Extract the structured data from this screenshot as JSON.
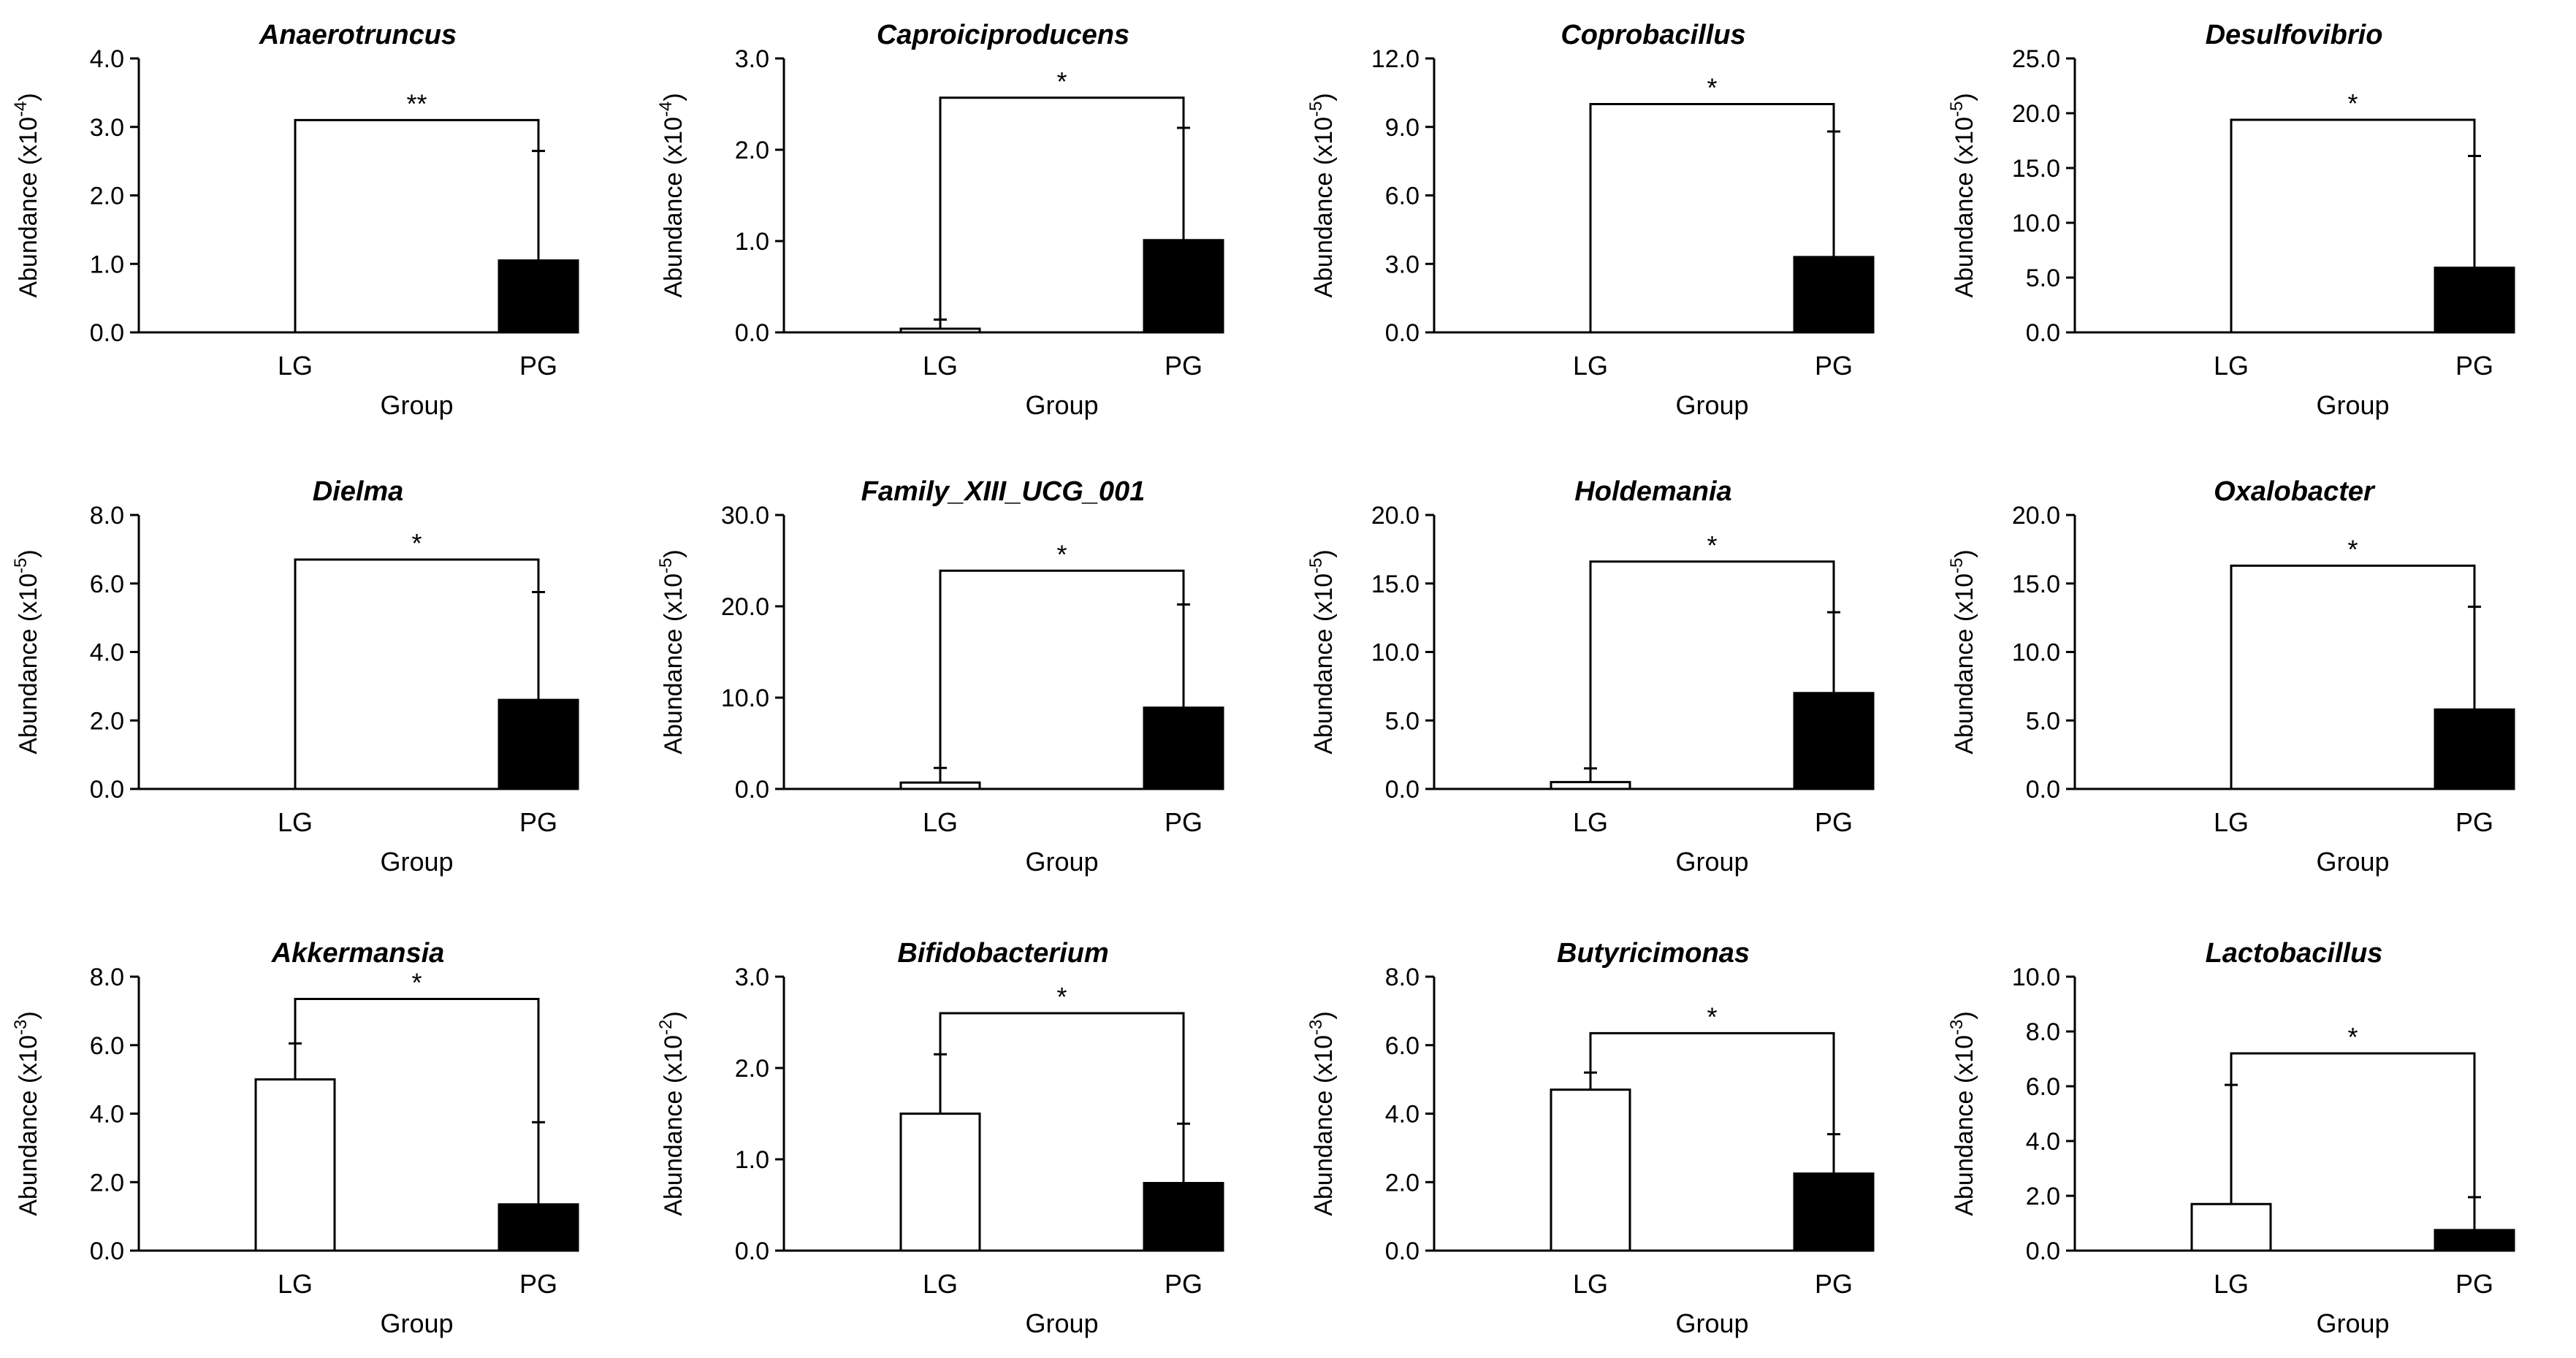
{
  "chart_data": [
    {
      "type": "bar",
      "title": "Anaerotruncus",
      "unit_base": "x10",
      "unit_exp": "-4",
      "ylabel": "Abundance",
      "xlabel": "Group",
      "categories": [
        "LG",
        "PG"
      ],
      "values": [
        0.0,
        1.05
      ],
      "errors": [
        0.0,
        1.6
      ],
      "ylim": [
        0,
        4
      ],
      "yticks": [
        "0.0",
        "1.0",
        "2.0",
        "3.0",
        "4.0"
      ],
      "significance": "**",
      "bracket_y": 3.1,
      "colors": [
        "#ffffff",
        "#000000"
      ]
    },
    {
      "type": "bar",
      "title": "Caproiciproducens",
      "unit_base": "x10",
      "unit_exp": "-4",
      "ylabel": "Abundance",
      "xlabel": "Group",
      "categories": [
        "LG",
        "PG"
      ],
      "values": [
        0.04,
        1.01
      ],
      "errors": [
        0.1,
        1.23
      ],
      "ylim": [
        0,
        3
      ],
      "yticks": [
        "0.0",
        "1.0",
        "2.0",
        "3.0"
      ],
      "significance": "*",
      "bracket_y": 2.57,
      "colors": [
        "#ffffff",
        "#000000"
      ]
    },
    {
      "type": "bar",
      "title": "Coprobacillus",
      "unit_base": "x10",
      "unit_exp": "-5",
      "ylabel": "Abundance",
      "xlabel": "Group",
      "categories": [
        "LG",
        "PG"
      ],
      "values": [
        0.0,
        3.3
      ],
      "errors": [
        0.0,
        5.5
      ],
      "ylim": [
        0,
        12
      ],
      "yticks": [
        "0.0",
        "3.0",
        "6.0",
        "9.0",
        "12.0"
      ],
      "significance": "*",
      "bracket_y": 10.0,
      "colors": [
        "#ffffff",
        "#000000"
      ]
    },
    {
      "type": "bar",
      "title": "Desulfovibrio",
      "unit_base": "x10",
      "unit_exp": "-5",
      "ylabel": "Abundance",
      "xlabel": "Group",
      "categories": [
        "LG",
        "PG"
      ],
      "values": [
        0.0,
        5.9
      ],
      "errors": [
        0.0,
        10.2
      ],
      "ylim": [
        0,
        25
      ],
      "yticks": [
        "0.0",
        "5.0",
        "10.0",
        "15.0",
        "20.0",
        "25.0"
      ],
      "significance": "*",
      "bracket_y": 19.4,
      "colors": [
        "#ffffff",
        "#000000"
      ]
    },
    {
      "type": "bar",
      "title": "Dielma",
      "unit_base": "x10",
      "unit_exp": "-5",
      "ylabel": "Abundance",
      "xlabel": "Group",
      "categories": [
        "LG",
        "PG"
      ],
      "values": [
        0.0,
        2.6
      ],
      "errors": [
        0.0,
        3.15
      ],
      "ylim": [
        0,
        8
      ],
      "yticks": [
        "0.0",
        "2.0",
        "4.0",
        "6.0",
        "8.0"
      ],
      "significance": "*",
      "bracket_y": 6.7,
      "colors": [
        "#ffffff",
        "#000000"
      ]
    },
    {
      "type": "bar",
      "title": "Family_XIII_UCG_001",
      "unit_base": "x10",
      "unit_exp": "-5",
      "ylabel": "Abundance",
      "xlabel": "Group",
      "categories": [
        "LG",
        "PG"
      ],
      "values": [
        0.7,
        8.9
      ],
      "errors": [
        1.6,
        11.3
      ],
      "ylim": [
        0,
        30
      ],
      "yticks": [
        "0.0",
        "10.0",
        "20.0",
        "30.0"
      ],
      "significance": "*",
      "bracket_y": 23.9,
      "colors": [
        "#ffffff",
        "#000000"
      ]
    },
    {
      "type": "bar",
      "title": "Holdemania",
      "unit_base": "x10",
      "unit_exp": "-5",
      "ylabel": "Abundance",
      "xlabel": "Group",
      "categories": [
        "LG",
        "PG"
      ],
      "values": [
        0.5,
        7.0
      ],
      "errors": [
        1.0,
        5.9
      ],
      "ylim": [
        0,
        20
      ],
      "yticks": [
        "0.0",
        "5.0",
        "10.0",
        "15.0",
        "20.0"
      ],
      "significance": "*",
      "bracket_y": 16.6,
      "colors": [
        "#ffffff",
        "#000000"
      ]
    },
    {
      "type": "bar",
      "title": "Oxalobacter",
      "unit_base": "x10",
      "unit_exp": "-5",
      "ylabel": "Abundance",
      "xlabel": "Group",
      "categories": [
        "LG",
        "PG"
      ],
      "values": [
        0.0,
        5.8
      ],
      "errors": [
        0.0,
        7.5
      ],
      "ylim": [
        0,
        20
      ],
      "yticks": [
        "0.0",
        "5.0",
        "10.0",
        "15.0",
        "20.0"
      ],
      "significance": "*",
      "bracket_y": 16.3,
      "colors": [
        "#ffffff",
        "#000000"
      ]
    },
    {
      "type": "bar",
      "title": "Akkermansia",
      "unit_base": "x10",
      "unit_exp": "-3",
      "ylabel": "Abundance",
      "xlabel": "Group",
      "categories": [
        "LG",
        "PG"
      ],
      "values": [
        5.0,
        1.35
      ],
      "errors": [
        1.05,
        2.4
      ],
      "ylim": [
        0,
        8
      ],
      "yticks": [
        "0.0",
        "2.0",
        "4.0",
        "6.0",
        "8.0"
      ],
      "significance": "*",
      "bracket_y": 7.35,
      "colors": [
        "#ffffff",
        "#000000"
      ]
    },
    {
      "type": "bar",
      "title": "Bifidobacterium",
      "unit_base": "x10",
      "unit_exp": "-2",
      "ylabel": "Abundance",
      "xlabel": "Group",
      "categories": [
        "LG",
        "PG"
      ],
      "values": [
        1.5,
        0.74
      ],
      "errors": [
        0.65,
        0.65
      ],
      "ylim": [
        0,
        3
      ],
      "yticks": [
        "0.0",
        "1.0",
        "2.0",
        "3.0"
      ],
      "significance": "*",
      "bracket_y": 2.6,
      "colors": [
        "#ffffff",
        "#000000"
      ]
    },
    {
      "type": "bar",
      "title": "Butyricimonas",
      "unit_base": "x10",
      "unit_exp": "-3",
      "ylabel": "Abundance",
      "xlabel": "Group",
      "categories": [
        "LG",
        "PG"
      ],
      "values": [
        4.7,
        2.25
      ],
      "errors": [
        0.5,
        1.15
      ],
      "ylim": [
        0,
        8
      ],
      "yticks": [
        "0.0",
        "2.0",
        "4.0",
        "6.0",
        "8.0"
      ],
      "significance": "*",
      "bracket_y": 6.35,
      "colors": [
        "#ffffff",
        "#000000"
      ]
    },
    {
      "type": "bar",
      "title": "Lactobacillus",
      "unit_base": "x10",
      "unit_exp": "-3",
      "ylabel": "Abundance",
      "xlabel": "Group",
      "categories": [
        "LG",
        "PG"
      ],
      "values": [
        1.7,
        0.75
      ],
      "errors": [
        4.35,
        1.2
      ],
      "ylim": [
        0,
        10
      ],
      "yticks": [
        "0.0",
        "2.0",
        "4.0",
        "6.0",
        "8.0",
        "10.0"
      ],
      "significance": "*",
      "bracket_y": 7.2,
      "colors": [
        "#ffffff",
        "#000000"
      ]
    }
  ]
}
